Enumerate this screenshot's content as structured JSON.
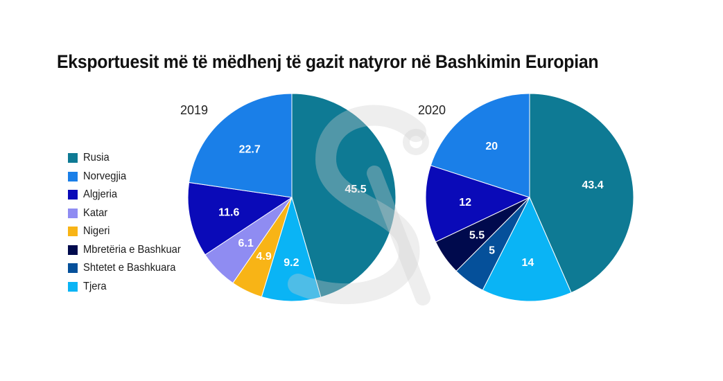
{
  "title": "Eksportuesit më të mëdhenj të gazit natyror në Bashkimin Europian",
  "legend": [
    {
      "name": "Rusia",
      "color": "#0e7a94"
    },
    {
      "name": "Norvegjia",
      "color": "#1a7fe8"
    },
    {
      "name": "Algjeria",
      "color": "#0a0ab8"
    },
    {
      "name": "Katar",
      "color": "#8f8cf2"
    },
    {
      "name": "Nigeri",
      "color": "#f8b416"
    },
    {
      "name": "Mbretëria e Bashkuar",
      "color": "#000a4d"
    },
    {
      "name": "Shtetet e Bashkuara",
      "color": "#05509a"
    },
    {
      "name": "Tjera",
      "color": "#0ab4f5"
    }
  ],
  "chart_data": [
    {
      "type": "pie",
      "title": "2019",
      "slices": [
        {
          "name": "Rusia",
          "value": 45.5,
          "label": "45.5",
          "color": "#0e7a94"
        },
        {
          "name": "Tjera",
          "value": 9.2,
          "label": "9.2",
          "color": "#0ab4f5"
        },
        {
          "name": "Nigeri",
          "value": 4.9,
          "label": "4.9",
          "color": "#f8b416"
        },
        {
          "name": "Katar",
          "value": 6.1,
          "label": "6.1",
          "color": "#8f8cf2"
        },
        {
          "name": "Algjeria",
          "value": 11.6,
          "label": "11.6",
          "color": "#0a0ab8"
        },
        {
          "name": "Norvegjia",
          "value": 22.7,
          "label": "22.7",
          "color": "#1a7fe8"
        }
      ]
    },
    {
      "type": "pie",
      "title": "2020",
      "slices": [
        {
          "name": "Rusia",
          "value": 43.4,
          "label": "43.4",
          "color": "#0e7a94"
        },
        {
          "name": "Tjera",
          "value": 14,
          "label": "14",
          "color": "#0ab4f5"
        },
        {
          "name": "Shtetet e Bashkuara",
          "value": 5,
          "label": "5",
          "color": "#05509a"
        },
        {
          "name": "Mbretëria e Bashkuar",
          "value": 5.5,
          "label": "5.5",
          "color": "#000a4d"
        },
        {
          "name": "Algjeria",
          "value": 12,
          "label": "12",
          "color": "#0a0ab8"
        },
        {
          "name": "Norvegjia",
          "value": 20,
          "label": "20",
          "color": "#1a7fe8"
        }
      ]
    }
  ]
}
